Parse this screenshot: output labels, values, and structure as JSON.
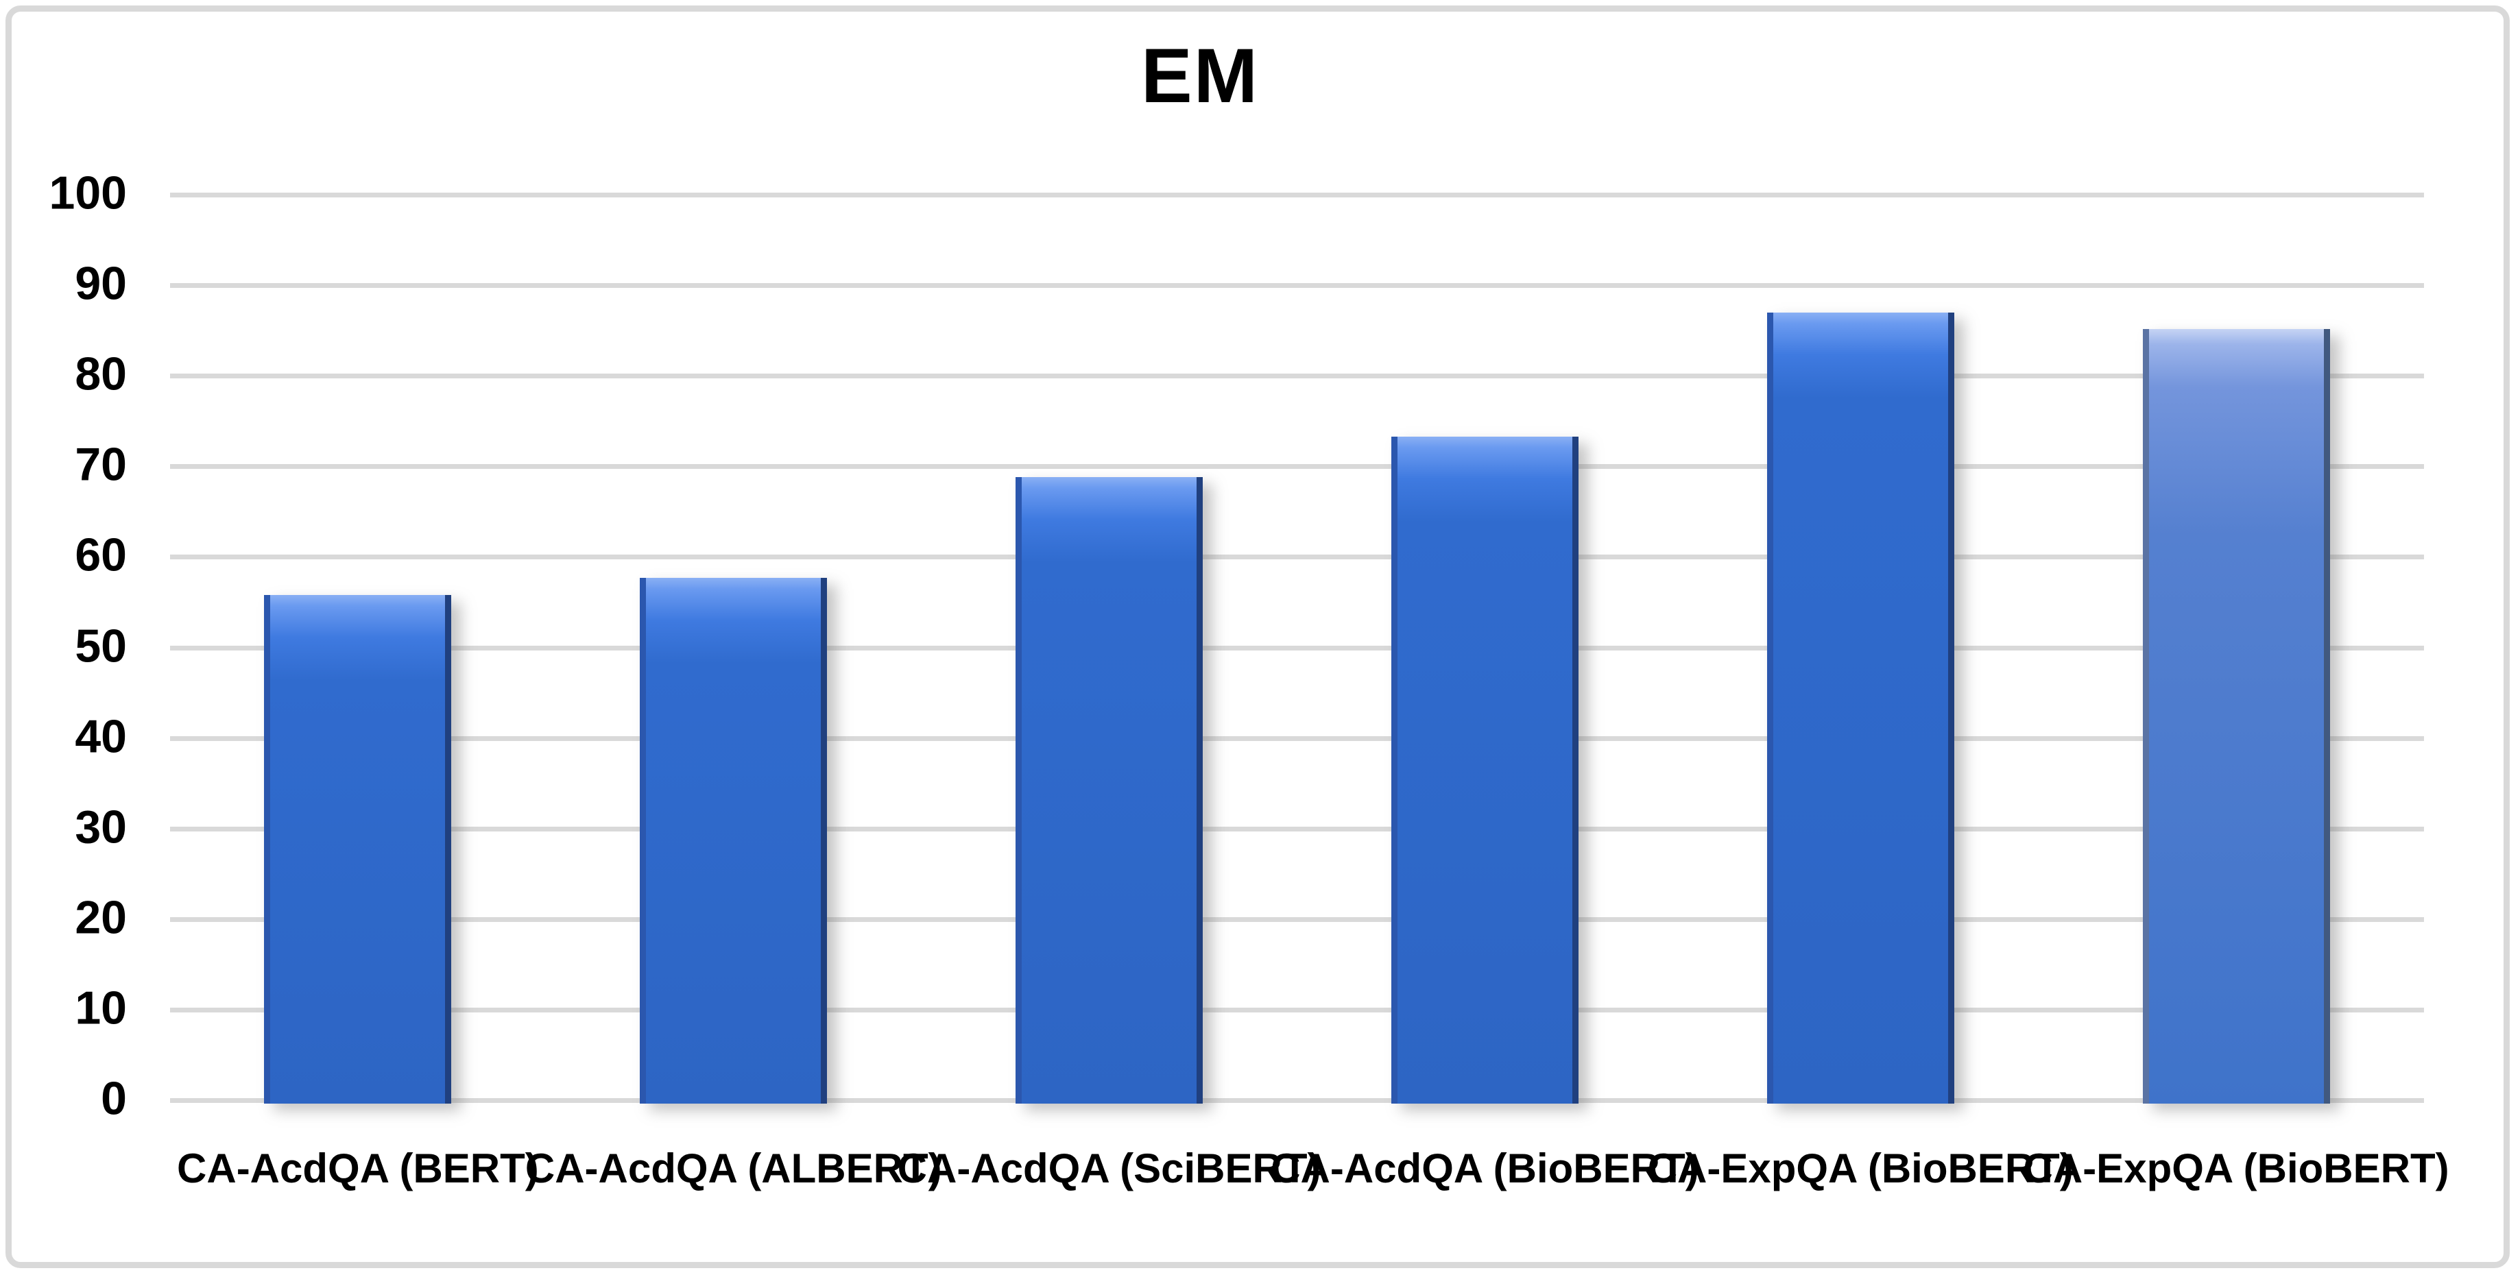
{
  "chart_data": {
    "type": "bar",
    "title": "EM",
    "categories": [
      "CA-AcdQA (BERT)",
      "CA-AcdQA (ALBERT)",
      "CA-AcdQA (SciBERT)",
      "CA-AcdQA (BioBERT)",
      "CA-ExpQA (BioBERT)",
      "CA-ExpQA (BioBERT)"
    ],
    "values": [
      55.8,
      57.7,
      68.8,
      73.3,
      87.0,
      85.2
    ],
    "xlabel": "",
    "ylabel": "",
    "ylim": [
      0,
      100
    ],
    "ytick_step": 10,
    "yticks": [
      "0",
      "10",
      "20",
      "30",
      "40",
      "50",
      "60",
      "70",
      "80",
      "90",
      "100"
    ],
    "grid": true,
    "legend_position": "none",
    "colors": {
      "bar_face": "#2f68ca",
      "bar_face_last": "#5b84d4",
      "gridline": "#d9d9d9",
      "frame_border": "#d9d9d9",
      "text": "#000000"
    }
  }
}
